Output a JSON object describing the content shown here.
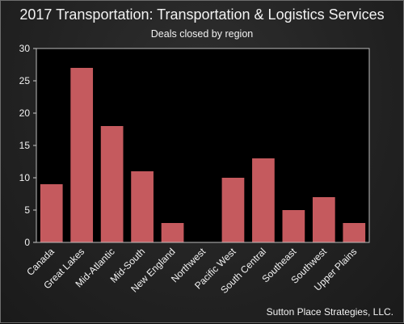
{
  "chart_data": {
    "type": "bar",
    "title": "2017 Transportation: Transportation & Logistics Services",
    "subtitle": "Deals closed by region",
    "categories": [
      "Canada",
      "Great Lakes",
      "Mid-Atlantic",
      "Mid-South",
      "New England",
      "Northwest",
      "Pacific West",
      "South Central",
      "Southeast",
      "Southwest",
      "Upper Plains"
    ],
    "values": [
      9,
      27,
      18,
      11,
      3,
      0,
      10,
      13,
      5,
      7,
      3
    ],
    "xlabel": "",
    "ylabel": "",
    "ylim": [
      0,
      30
    ],
    "yticks": [
      0,
      5,
      10,
      15,
      20,
      25,
      30
    ],
    "grid": false,
    "legend": "none",
    "bar_color": "#c55a5e"
  },
  "credit": "Sutton Place Strategies, LLC."
}
